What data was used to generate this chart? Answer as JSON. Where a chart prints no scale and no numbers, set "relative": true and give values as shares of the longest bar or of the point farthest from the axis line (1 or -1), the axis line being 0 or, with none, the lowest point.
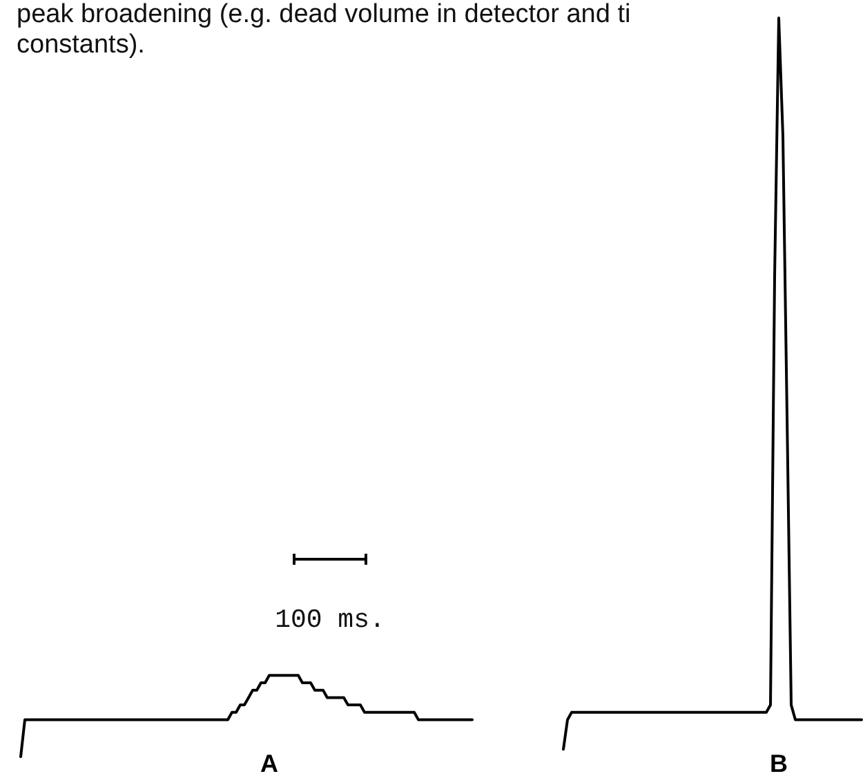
{
  "chart_data": [
    {
      "type": "other",
      "annotations": [
        "peak broadening (e.g. dead volume in detector and ti",
        "constants).",
        "100 ms."
      ]
    },
    {
      "type": "line",
      "relative": true,
      "line_style": "solid",
      "categories": [
        null,
        null,
        null,
        null,
        null,
        null,
        null,
        null,
        null,
        null,
        null,
        null,
        null,
        null,
        null,
        null,
        null,
        null,
        null,
        null,
        null,
        null,
        null,
        null,
        null,
        null,
        null,
        null,
        null,
        null,
        null,
        null,
        null,
        null,
        null,
        null,
        null,
        null,
        null,
        null,
        null,
        null,
        null,
        null,
        null,
        null,
        null,
        null,
        null,
        null,
        null,
        null,
        null,
        null,
        null,
        null,
        null,
        null,
        null,
        null,
        null,
        null,
        null,
        null,
        null,
        null,
        null,
        null,
        null,
        null,
        null,
        null,
        null,
        null,
        null,
        null,
        null,
        null,
        null,
        null,
        null,
        null,
        null,
        null,
        null,
        null,
        null,
        null,
        null,
        null,
        null,
        null,
        null,
        null,
        null,
        null,
        null,
        null,
        null,
        null,
        null,
        null,
        null,
        null,
        null,
        null,
        null,
        null,
        null,
        null,
        null,
        null,
        null,
        null,
        null,
        null,
        null,
        null,
        null,
        null,
        null,
        null,
        null,
        null,
        null,
        null,
        null,
        null,
        null,
        null,
        null,
        null,
        null,
        null,
        null,
        null,
        null,
        null,
        null,
        null,
        null,
        null,
        null,
        null,
        null,
        null,
        null,
        null,
        null,
        null,
        null,
        null,
        null,
        null,
        null,
        null,
        null,
        null,
        null,
        null,
        null,
        null,
        null,
        null,
        null,
        null,
        null,
        null,
        null,
        null,
        null,
        null,
        null,
        null,
        null,
        null,
        null,
        null,
        null,
        null,
        null,
        null,
        null,
        null,
        null,
        null,
        null,
        null,
        null,
        null,
        null,
        null,
        null,
        null,
        null,
        null,
        null,
        null,
        null,
        null,
        null,
        null,
        null,
        null
      ],
      "series": [
        {
          "name": "A",
          "color": "#000000",
          "values": [
            0,
            0.05,
            0.05,
            0.05,
            0.05,
            0.05,
            0.05,
            0.05,
            0.05,
            0.05,
            0.05,
            0.05,
            0.05,
            0.05,
            0.05,
            0.05,
            0.05,
            0.05,
            0.05,
            0.05,
            0.05,
            0.05,
            0.05,
            0.05,
            0.05,
            0.05,
            0.05,
            0.05,
            0.05,
            0.05,
            0.05,
            0.05,
            0.05,
            0.05,
            0.05,
            0.05,
            0.05,
            0.05,
            0.05,
            0.05,
            0.05,
            0.05,
            0.05,
            0.05,
            0.05,
            0.05,
            0.05,
            0.05,
            0.05,
            0.05,
            0.05,
            0.06,
            0.06,
            0.07,
            0.07,
            0.08,
            0.09,
            0.09,
            0.1,
            0.1,
            0.11,
            0.11,
            0.11,
            0.11,
            0.11,
            0.11,
            0.11,
            0.11,
            0.1,
            0.1,
            0.1,
            0.09,
            0.09,
            0.09,
            0.08,
            0.08,
            0.08,
            0.08,
            0.08,
            0.07,
            0.07,
            0.07,
            0.07,
            0.06,
            0.06,
            0.06,
            0.06,
            0.06,
            0.06,
            0.06,
            0.06,
            0.06,
            0.06,
            0.06,
            0.06,
            0.06,
            0.05,
            0.05,
            0.05,
            0.05,
            0.05,
            0.05,
            0.05,
            0.05,
            0.05,
            0.05,
            0.05,
            0.05,
            0.05,
            0.05,
            null,
            null,
            null,
            null,
            null,
            null,
            null,
            null,
            null,
            null,
            null,
            null,
            null,
            null,
            null,
            null,
            null,
            null,
            null,
            null,
            null,
            null,
            null,
            null,
            null,
            null,
            null,
            null,
            null,
            null,
            null,
            null,
            null,
            null,
            null,
            null,
            null,
            null,
            null,
            null,
            null,
            null,
            null,
            null,
            null,
            null,
            null,
            null,
            null,
            null,
            null,
            null,
            null,
            null,
            null,
            null,
            null,
            null,
            null,
            null,
            null,
            null,
            null,
            null,
            null,
            null,
            null,
            null,
            null,
            null,
            null,
            null,
            null,
            null,
            null,
            null,
            null,
            null,
            null,
            null,
            null,
            null,
            null,
            null,
            null,
            null,
            null,
            null,
            null,
            null,
            null,
            null,
            null,
            null
          ]
        },
        {
          "name": "B",
          "color": "#000000",
          "values": [
            null,
            null,
            null,
            null,
            null,
            null,
            null,
            null,
            null,
            null,
            null,
            null,
            null,
            null,
            null,
            null,
            null,
            null,
            null,
            null,
            null,
            null,
            null,
            null,
            null,
            null,
            null,
            null,
            null,
            null,
            null,
            null,
            null,
            null,
            null,
            null,
            null,
            null,
            null,
            null,
            null,
            null,
            null,
            null,
            null,
            null,
            null,
            null,
            null,
            null,
            null,
            null,
            null,
            null,
            null,
            null,
            null,
            null,
            null,
            null,
            null,
            null,
            null,
            null,
            null,
            null,
            null,
            null,
            null,
            null,
            null,
            null,
            null,
            null,
            null,
            null,
            null,
            null,
            null,
            null,
            null,
            null,
            null,
            null,
            null,
            null,
            null,
            null,
            null,
            null,
            null,
            null,
            null,
            null,
            null,
            null,
            null,
            null,
            null,
            null,
            null,
            null,
            null,
            null,
            null,
            null,
            null,
            null,
            null,
            null,
            null,
            null,
            null,
            null,
            null,
            null,
            null,
            null,
            null,
            null,
            null,
            null,
            null,
            null,
            null,
            null,
            null,
            null,
            null,
            null,
            null,
            0.01,
            0.05,
            0.06,
            0.06,
            0.06,
            0.06,
            0.06,
            0.06,
            0.06,
            0.06,
            0.06,
            0.06,
            0.06,
            0.06,
            0.06,
            0.06,
            0.06,
            0.06,
            0.06,
            0.06,
            0.06,
            0.06,
            0.06,
            0.06,
            0.06,
            0.06,
            0.06,
            0.06,
            0.06,
            0.06,
            0.06,
            0.06,
            0.06,
            0.06,
            0.06,
            0.06,
            0.06,
            0.06,
            0.06,
            0.06,
            0.06,
            0.06,
            0.06,
            0.06,
            0.06,
            0.06,
            0.06,
            0.06,
            0.06,
            0.06,
            0.07,
            0.65,
            1,
            0.84,
            0.46,
            0.07,
            0.05,
            0.05,
            0.05,
            0.05,
            0.05,
            0.05,
            0.05,
            0.05,
            0.05,
            0.05,
            0.05,
            0.05,
            0.05,
            0.05,
            0.05,
            0.05,
            0.05
          ]
        }
      ]
    }
  ]
}
